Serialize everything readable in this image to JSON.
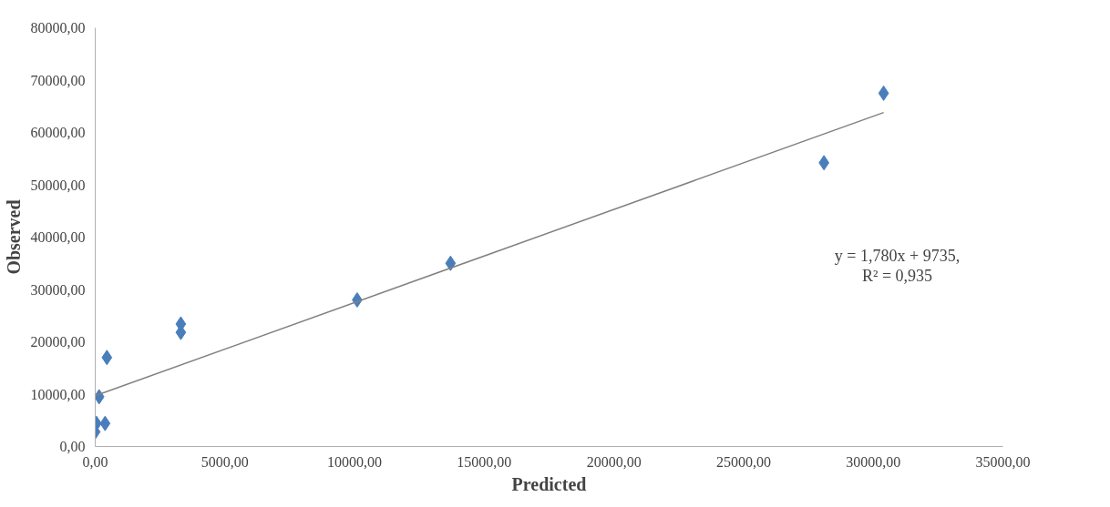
{
  "chart_data": {
    "type": "scatter",
    "xlabel": "Predicted",
    "ylabel": "Observed",
    "annotations": [
      "y = 1,780x + 9735,",
      "R² = 0,935"
    ],
    "xlim": [
      0,
      35000
    ],
    "ylim": [
      0,
      80000
    ],
    "xticks": [
      {
        "value": 0,
        "label": "0,00"
      },
      {
        "value": 5000,
        "label": "5000,00"
      },
      {
        "value": 10000,
        "label": "10000,00"
      },
      {
        "value": 15000,
        "label": "15000,00"
      },
      {
        "value": 20000,
        "label": "20000,00"
      },
      {
        "value": 25000,
        "label": "25000,00"
      },
      {
        "value": 30000,
        "label": "30000,00"
      },
      {
        "value": 35000,
        "label": "35000,00"
      }
    ],
    "yticks": [
      {
        "value": 0,
        "label": "0,00"
      },
      {
        "value": 10000,
        "label": "10000,00"
      },
      {
        "value": 20000,
        "label": "20000,00"
      },
      {
        "value": 30000,
        "label": "30000,00"
      },
      {
        "value": 40000,
        "label": "40000,00"
      },
      {
        "value": 50000,
        "label": "50000,00"
      },
      {
        "value": 60000,
        "label": "60000,00"
      },
      {
        "value": 70000,
        "label": "70000,00"
      },
      {
        "value": 80000,
        "label": "80000,00"
      }
    ],
    "grid": false,
    "marker": "diamond",
    "series": [
      {
        "color": "#4a7ebb",
        "x": [
          0,
          50,
          380,
          150,
          450,
          3300,
          3300,
          10100,
          13700,
          28100,
          30400
        ],
        "values": [
          2800,
          4400,
          4400,
          9500,
          17000,
          23400,
          21800,
          28000,
          35000,
          54200,
          67500
        ]
      },
      {
        "type": "line",
        "marker": "none",
        "color": "#808080",
        "x": [
          0,
          30400
        ],
        "values": [
          9700,
          63800
        ]
      }
    ]
  }
}
